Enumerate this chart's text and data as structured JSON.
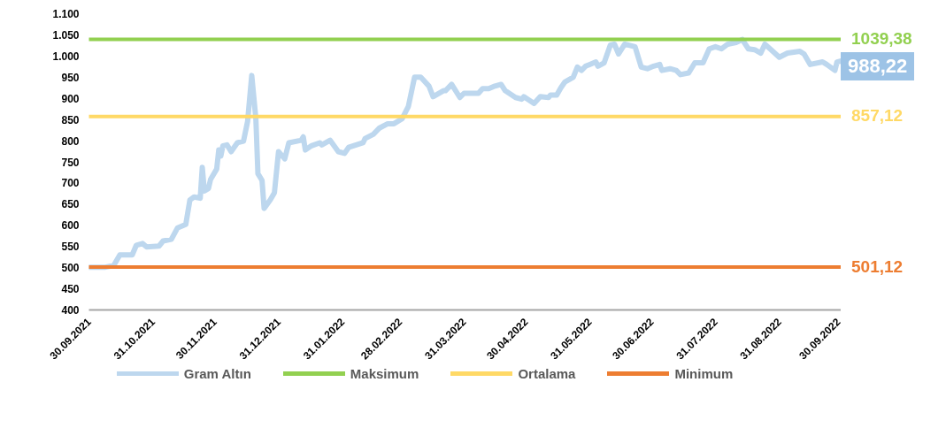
{
  "chart_data": {
    "type": "line",
    "x": [
      "2021-09-30",
      "2021-10-08",
      "2021-10-12",
      "2021-10-15",
      "2021-10-21",
      "2021-10-23",
      "2021-10-26",
      "2021-10-28",
      "2021-11-03",
      "2021-11-05",
      "2021-11-09",
      "2021-11-12",
      "2021-11-16",
      "2021-11-18",
      "2021-11-20",
      "2021-11-23",
      "2021-11-24",
      "2021-11-25",
      "2021-11-27",
      "2021-11-28",
      "2021-12-01",
      "2021-12-02",
      "2021-12-03",
      "2021-12-04",
      "2021-12-06",
      "2021-12-08",
      "2021-12-11",
      "2021-12-14",
      "2021-12-16",
      "2021-12-18",
      "2021-12-20",
      "2021-12-21",
      "2021-12-23",
      "2021-12-24",
      "2021-12-27",
      "2021-12-29",
      "2021-12-31",
      "2022-01-03",
      "2022-01-05",
      "2022-01-11",
      "2022-01-12",
      "2022-01-13",
      "2022-01-16",
      "2022-01-20",
      "2022-01-21",
      "2022-01-25",
      "2022-01-29",
      "2022-02-01",
      "2022-02-03",
      "2022-02-10",
      "2022-02-11",
      "2022-02-15",
      "2022-02-18",
      "2022-02-22",
      "2022-02-25",
      "2022-03-01",
      "2022-03-04",
      "2022-03-07",
      "2022-03-10",
      "2022-03-14",
      "2022-03-16",
      "2022-03-21",
      "2022-03-22",
      "2022-03-25",
      "2022-03-29",
      "2022-03-31",
      "2022-04-07",
      "2022-04-09",
      "2022-04-12",
      "2022-04-15",
      "2022-04-18",
      "2022-04-20",
      "2022-04-25",
      "2022-04-28",
      "2022-04-29",
      "2022-05-04",
      "2022-05-07",
      "2022-05-11",
      "2022-05-12",
      "2022-05-15",
      "2022-05-17",
      "2022-05-19",
      "2022-05-23",
      "2022-05-25",
      "2022-05-27",
      "2022-05-29",
      "2022-05-31",
      "2022-06-03",
      "2022-06-04",
      "2022-06-07",
      "2022-06-10",
      "2022-06-12",
      "2022-06-14",
      "2022-06-17",
      "2022-06-22",
      "2022-06-25",
      "2022-06-28",
      "2022-07-01",
      "2022-07-04",
      "2022-07-05",
      "2022-07-09",
      "2022-07-12",
      "2022-07-14",
      "2022-07-18",
      "2022-07-21",
      "2022-07-25",
      "2022-07-28",
      "2022-07-31",
      "2022-08-03",
      "2022-08-06",
      "2022-08-10",
      "2022-08-13",
      "2022-08-16",
      "2022-08-19",
      "2022-08-22",
      "2022-08-24",
      "2022-08-27",
      "2022-08-31",
      "2022-09-04",
      "2022-09-10",
      "2022-09-12",
      "2022-09-15",
      "2022-09-21",
      "2022-09-23",
      "2022-09-27",
      "2022-09-28",
      "2022-09-30"
    ],
    "series": [
      {
        "name": "Gram Altın",
        "color": "#bdd7ee",
        "values": [
          501,
          501,
          505,
          530,
          530,
          553,
          557,
          549,
          551,
          563,
          567,
          594,
          602,
          660,
          667,
          664,
          737,
          681,
          687,
          708,
          733,
          778,
          764,
          788,
          790,
          774,
          795,
          799,
          846,
          954,
          852,
          722,
          706,
          640,
          660,
          677,
          774,
          757,
          795,
          801,
          809,
          778,
          788,
          795,
          790,
          801,
          774,
          770,
          784,
          795,
          805,
          815,
          830,
          840,
          840,
          852,
          881,
          950,
          950,
          929,
          904,
          918,
          918,
          933,
          902,
          912,
          912,
          923,
          923,
          929,
          933,
          918,
          902,
          898,
          904,
          888,
          904,
          902,
          908,
          908,
          925,
          939,
          950,
          974,
          966,
          976,
          980,
          986,
          976,
          984,
          1026,
          1028,
          1005,
          1028,
          1022,
          974,
          970,
          976,
          980,
          966,
          970,
          966,
          956,
          960,
          984,
          984,
          1017,
          1022,
          1017,
          1028,
          1032,
          1039,
          1017,
          1015,
          1007,
          1028,
          1015,
          997,
          1007,
          1011,
          1005,
          980,
          986,
          980,
          966,
          986,
          988.22
        ],
        "value_labels": [
          null,
          null,
          null,
          null,
          null,
          null,
          null,
          null,
          null,
          null,
          null,
          null,
          null,
          null,
          null,
          null,
          null,
          null,
          null,
          null,
          null,
          null,
          null,
          null,
          null,
          null,
          null,
          null,
          null,
          null,
          null,
          null,
          null,
          null,
          null,
          null,
          null,
          null,
          null,
          null,
          null,
          null,
          null,
          null,
          null,
          null,
          null,
          null,
          null,
          null,
          null,
          null,
          null,
          null,
          null,
          null,
          null,
          null,
          null,
          null,
          null,
          null,
          null,
          null,
          null,
          null,
          null,
          null,
          null,
          null,
          null,
          null,
          null,
          null,
          null,
          null,
          null,
          null,
          null,
          null,
          null,
          null,
          null,
          null,
          null,
          null,
          null,
          null,
          null,
          null,
          null,
          null,
          null,
          null,
          null,
          null,
          null,
          null,
          null,
          null,
          null,
          null,
          null,
          null,
          null,
          null,
          null,
          null,
          null,
          null,
          null,
          null,
          null,
          null,
          null,
          null,
          null,
          null,
          null,
          null,
          null,
          null,
          null,
          null,
          null,
          null,
          "988,22"
        ]
      },
      {
        "name": "Maksimum",
        "color": "#92d050",
        "x": [
          "2021-09-30",
          "2022-09-30"
        ],
        "values": [
          1039.38,
          1039.38
        ],
        "value_labels": [
          null,
          "1039,38"
        ]
      },
      {
        "name": "Ortalama",
        "color": "#ffd966",
        "x": [
          "2021-09-30",
          "2022-09-30"
        ],
        "values": [
          857.12,
          857.12
        ],
        "value_labels": [
          null,
          "857,12"
        ]
      },
      {
        "name": "Minimum",
        "color": "#ed7d31",
        "x": [
          "2021-09-30",
          "2022-09-30"
        ],
        "values": [
          501.12,
          501.12
        ],
        "value_labels": [
          null,
          "501,12"
        ]
      }
    ],
    "xlim": [
      "2021-09-30",
      "2022-09-30"
    ],
    "xticks": [
      {
        "value": "2021-09-30",
        "label": "30.09.2021"
      },
      {
        "value": "2021-10-31",
        "label": "31.10.2021"
      },
      {
        "value": "2021-11-30",
        "label": "30.11.2021"
      },
      {
        "value": "2021-12-31",
        "label": "31.12.2021"
      },
      {
        "value": "2022-01-31",
        "label": "31.01.2022"
      },
      {
        "value": "2022-02-28",
        "label": "28.02.2022"
      },
      {
        "value": "2022-03-31",
        "label": "31.03.2022"
      },
      {
        "value": "2022-04-30",
        "label": "30.04.2022"
      },
      {
        "value": "2022-05-31",
        "label": "31.05.2022"
      },
      {
        "value": "2022-06-30",
        "label": "30.06.2022"
      },
      {
        "value": "2022-07-31",
        "label": "31.07.2022"
      },
      {
        "value": "2022-08-31",
        "label": "31.08.2022"
      },
      {
        "value": "2022-09-30",
        "label": "30.09.2022"
      }
    ],
    "ylim": [
      400,
      1100
    ],
    "yticks": [
      400,
      450,
      500,
      550,
      600,
      650,
      700,
      750,
      800,
      850,
      900,
      950,
      {
        "value": 1000,
        "label": "1.000"
      },
      {
        "value": 1050,
        "label": "1.050"
      },
      {
        "value": 1100,
        "label": "1.100"
      }
    ],
    "grid": false,
    "legend": "bottom"
  }
}
